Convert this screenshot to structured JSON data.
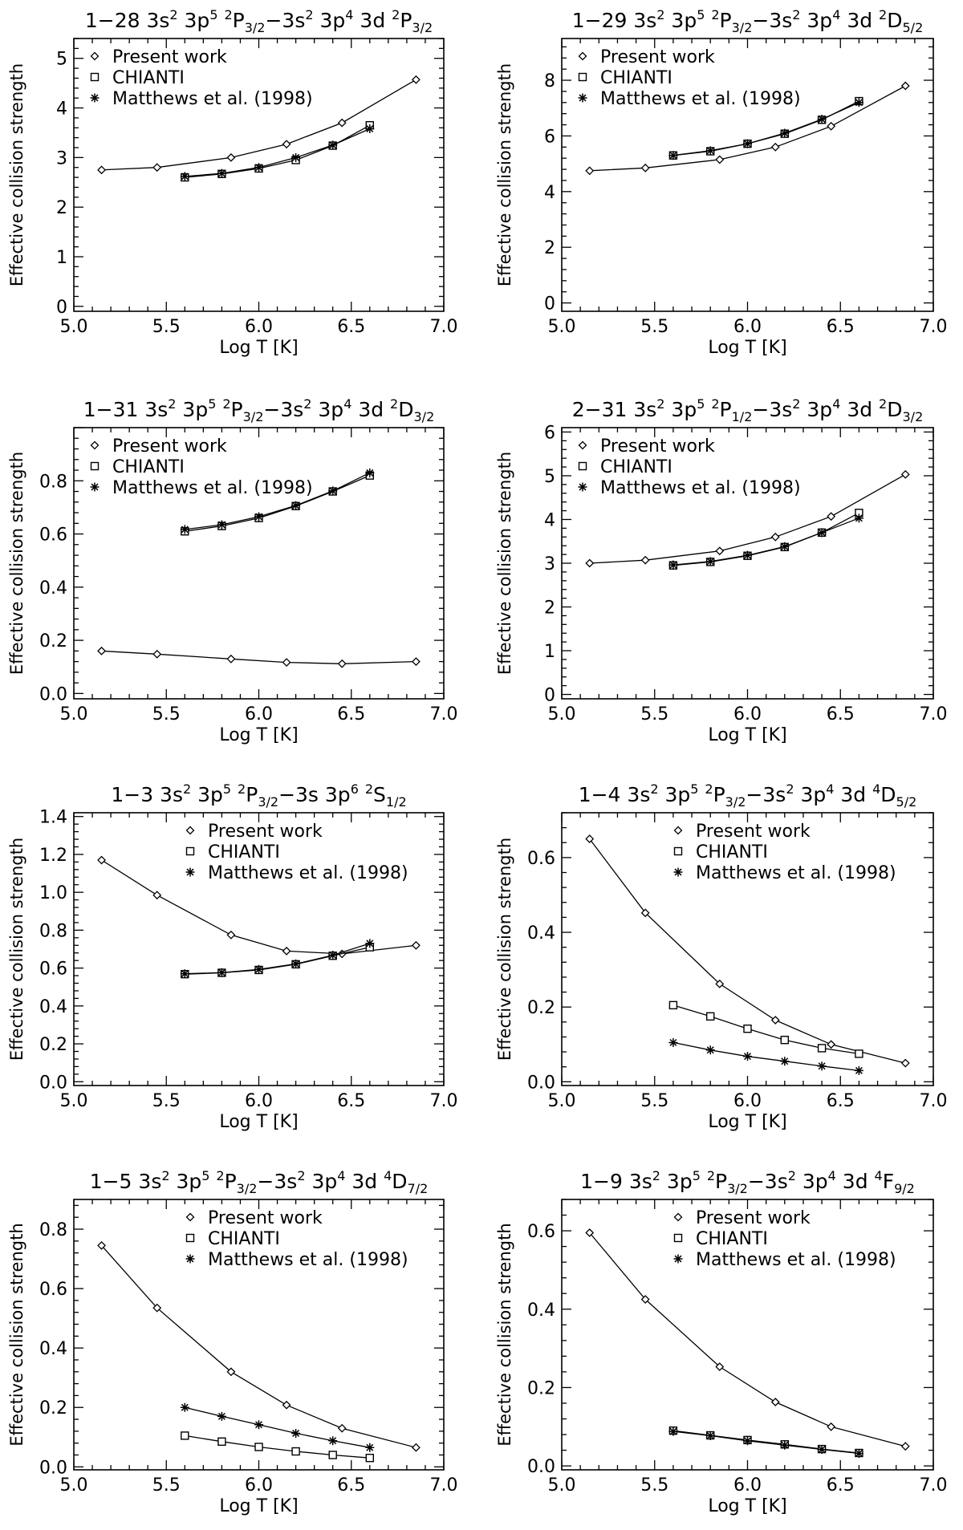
{
  "figure": {
    "common": {
      "xlabel": "Log T [K]",
      "ylabel": "Effective collision strength",
      "xlim": [
        5.0,
        7.0
      ],
      "xticks": [
        "5.0",
        "5.5",
        "6.0",
        "6.5",
        "7.0"
      ],
      "legend": [
        "Present work",
        "CHIANTI",
        "Matthews et al. (1998)"
      ]
    }
  },
  "chart_data": [
    {
      "type": "line",
      "title": "1-28 3s2 3p5 2P3/2-3s2 3p4 3d 2P3/2",
      "title_parts": {
        "lead": "1−28 3s",
        "s1": "2",
        "a": " 3p",
        "s2": "5",
        "b": " ",
        "s3": "2",
        "c": "P",
        "sub1": "3/2",
        "d": "−3s",
        "s4": "2",
        "e": " 3p",
        "s5": "4",
        "f": " 3d ",
        "s6": "2",
        "g": "P",
        "sub2": "3/2"
      },
      "xlabel": "Log T [K]",
      "ylabel": "Effective collision strength",
      "xlim": [
        5.0,
        7.0
      ],
      "ylim": [
        -0.1,
        5.4
      ],
      "yticks": [
        0,
        1,
        2,
        3,
        4,
        5
      ],
      "ytick_labels": [
        "0",
        "1",
        "2",
        "3",
        "4",
        "5"
      ],
      "legend_placement": "top-left",
      "series": [
        {
          "name": "Present work",
          "marker": "diamond",
          "x": [
            5.15,
            5.45,
            5.85,
            6.15,
            6.45,
            6.85
          ],
          "y": [
            2.75,
            2.8,
            3.0,
            3.27,
            3.7,
            4.57
          ]
        },
        {
          "name": "CHIANTI",
          "marker": "square",
          "x": [
            5.6,
            5.8,
            6.0,
            6.2,
            6.4,
            6.6
          ],
          "y": [
            2.6,
            2.67,
            2.78,
            2.95,
            3.24,
            3.65
          ]
        },
        {
          "name": "Matthews et al. (1998)",
          "marker": "asterisk",
          "x": [
            5.6,
            5.8,
            6.0,
            6.2,
            6.4,
            6.6
          ],
          "y": [
            2.62,
            2.68,
            2.8,
            3.0,
            3.25,
            3.58
          ]
        }
      ]
    },
    {
      "type": "line",
      "title": "1-29 3s2 3p5 2P3/2-3s2 3p4 3d 2D5/2",
      "title_parts": {
        "lead": "1−29 3s",
        "s1": "2",
        "a": " 3p",
        "s2": "5",
        "b": " ",
        "s3": "2",
        "c": "P",
        "sub1": "3/2",
        "d": "−3s",
        "s4": "2",
        "e": " 3p",
        "s5": "4",
        "f": " 3d ",
        "s6": "2",
        "g": "D",
        "sub2": "5/2"
      },
      "xlabel": "Log T [K]",
      "ylabel": "Effective collision strength",
      "xlim": [
        5.0,
        7.0
      ],
      "ylim": [
        -0.3,
        9.5
      ],
      "yticks": [
        0,
        2,
        4,
        6,
        8
      ],
      "ytick_labels": [
        "0",
        "2",
        "4",
        "6",
        "8"
      ],
      "legend_placement": "top-left",
      "series": [
        {
          "name": "Present work",
          "marker": "diamond",
          "x": [
            5.15,
            5.45,
            5.85,
            6.15,
            6.45,
            6.85
          ],
          "y": [
            4.75,
            4.85,
            5.15,
            5.6,
            6.35,
            7.8
          ]
        },
        {
          "name": "CHIANTI",
          "marker": "square",
          "x": [
            5.6,
            5.8,
            6.0,
            6.2,
            6.4,
            6.6
          ],
          "y": [
            5.3,
            5.45,
            5.72,
            6.08,
            6.58,
            7.25
          ]
        },
        {
          "name": "Matthews et al. (1998)",
          "marker": "asterisk",
          "x": [
            5.6,
            5.8,
            6.0,
            6.2,
            6.4,
            6.6
          ],
          "y": [
            5.3,
            5.47,
            5.72,
            6.1,
            6.6,
            7.2
          ]
        }
      ]
    },
    {
      "type": "line",
      "title": "1-31 3s2 3p5 2P3/2-3s2 3p4 3d 2D3/2",
      "title_parts": {
        "lead": "1−31 3s",
        "s1": "2",
        "a": " 3p",
        "s2": "5",
        "b": " ",
        "s3": "2",
        "c": "P",
        "sub1": "3/2",
        "d": "−3s",
        "s4": "2",
        "e": " 3p",
        "s5": "4",
        "f": " 3d ",
        "s6": "2",
        "g": "D",
        "sub2": "3/2"
      },
      "xlabel": "Log T [K]",
      "ylabel": "Effective collision strength",
      "xlim": [
        5.0,
        7.0
      ],
      "ylim": [
        -0.02,
        1.0
      ],
      "yticks": [
        0.0,
        0.2,
        0.4,
        0.6,
        0.8
      ],
      "ytick_labels": [
        "0.0",
        "0.2",
        "0.4",
        "0.6",
        "0.8"
      ],
      "legend_placement": "top-left",
      "series": [
        {
          "name": "Present work",
          "marker": "diamond",
          "x": [
            5.15,
            5.45,
            5.85,
            6.15,
            6.45,
            6.85
          ],
          "y": [
            0.16,
            0.148,
            0.13,
            0.117,
            0.112,
            0.12
          ]
        },
        {
          "name": "CHIANTI",
          "marker": "square",
          "x": [
            5.6,
            5.8,
            6.0,
            6.2,
            6.4,
            6.6
          ],
          "y": [
            0.61,
            0.63,
            0.66,
            0.705,
            0.76,
            0.82
          ]
        },
        {
          "name": "Matthews et al. (1998)",
          "marker": "asterisk",
          "x": [
            5.6,
            5.8,
            6.0,
            6.2,
            6.4,
            6.6
          ],
          "y": [
            0.617,
            0.635,
            0.665,
            0.707,
            0.762,
            0.83
          ]
        }
      ]
    },
    {
      "type": "line",
      "title": "2-31 3s2 3p5 2P1/2-3s2 3p4 3d 2D3/2",
      "title_parts": {
        "lead": "2−31 3s",
        "s1": "2",
        "a": " 3p",
        "s2": "5",
        "b": " ",
        "s3": "2",
        "c": "P",
        "sub1": "1/2",
        "d": "−3s",
        "s4": "2",
        "e": " 3p",
        "s5": "4",
        "f": " 3d ",
        "s6": "2",
        "g": "D",
        "sub2": "3/2"
      },
      "xlabel": "Log T [K]",
      "ylabel": "Effective collision strength",
      "xlim": [
        5.0,
        7.0
      ],
      "ylim": [
        -0.1,
        6.1
      ],
      "yticks": [
        0,
        1,
        2,
        3,
        4,
        5,
        6
      ],
      "ytick_labels": [
        "0",
        "1",
        "2",
        "3",
        "4",
        "5",
        "6"
      ],
      "legend_placement": "top-left",
      "series": [
        {
          "name": "Present work",
          "marker": "diamond",
          "x": [
            5.15,
            5.45,
            5.85,
            6.15,
            6.45,
            6.85
          ],
          "y": [
            3.0,
            3.07,
            3.28,
            3.6,
            4.07,
            5.03
          ]
        },
        {
          "name": "CHIANTI",
          "marker": "square",
          "x": [
            5.6,
            5.8,
            6.0,
            6.2,
            6.4,
            6.6
          ],
          "y": [
            2.95,
            3.03,
            3.17,
            3.37,
            3.7,
            4.15
          ]
        },
        {
          "name": "Matthews et al. (1998)",
          "marker": "asterisk",
          "x": [
            5.6,
            5.8,
            6.0,
            6.2,
            6.4,
            6.6
          ],
          "y": [
            2.96,
            3.04,
            3.18,
            3.38,
            3.7,
            4.03
          ]
        }
      ]
    },
    {
      "type": "line",
      "title": "1-3 3s2 3p5 2P3/2-3s 3p6 2S1/2",
      "title_parts": {
        "lead": "1−3 3s",
        "s1": "2",
        "a": " 3p",
        "s2": "5",
        "b": " ",
        "s3": "2",
        "c": "P",
        "sub1": "3/2",
        "d": "−3s",
        "s4": "",
        "e": " 3p",
        "s5": "6",
        "f": " ",
        "s6": "2",
        "g": "S",
        "sub2": "1/2"
      },
      "xlabel": "Log T [K]",
      "ylabel": "Effective collision strength",
      "xlim": [
        5.0,
        7.0
      ],
      "ylim": [
        -0.02,
        1.42
      ],
      "yticks": [
        0.0,
        0.2,
        0.4,
        0.6,
        0.8,
        1.0,
        1.2,
        1.4
      ],
      "ytick_labels": [
        "0.0",
        "0.2",
        "0.4",
        "0.6",
        "0.8",
        "1.0",
        "1.2",
        "1.4"
      ],
      "legend_placement": "top-right",
      "series": [
        {
          "name": "Present work",
          "marker": "diamond",
          "x": [
            5.15,
            5.45,
            5.85,
            6.15,
            6.45,
            6.85
          ],
          "y": [
            1.17,
            0.985,
            0.775,
            0.69,
            0.675,
            0.72
          ]
        },
        {
          "name": "CHIANTI",
          "marker": "square",
          "x": [
            5.6,
            5.8,
            6.0,
            6.2,
            6.4,
            6.6
          ],
          "y": [
            0.568,
            0.575,
            0.59,
            0.62,
            0.665,
            0.71
          ]
        },
        {
          "name": "Matthews et al. (1998)",
          "marker": "asterisk",
          "x": [
            5.6,
            5.8,
            6.0,
            6.2,
            6.4,
            6.6
          ],
          "y": [
            0.57,
            0.576,
            0.593,
            0.622,
            0.668,
            0.73
          ]
        }
      ]
    },
    {
      "type": "line",
      "title": "1-4 3s2 3p5 2P3/2-3s2 3p4 3d 4D5/2",
      "title_parts": {
        "lead": "1−4 3s",
        "s1": "2",
        "a": " 3p",
        "s2": "5",
        "b": " ",
        "s3": "2",
        "c": "P",
        "sub1": "3/2",
        "d": "−3s",
        "s4": "2",
        "e": " 3p",
        "s5": "4",
        "f": " 3d ",
        "s6": "4",
        "g": "D",
        "sub2": "5/2"
      },
      "xlabel": "Log T [K]",
      "ylabel": "Effective collision strength",
      "xlim": [
        5.0,
        7.0
      ],
      "ylim": [
        -0.01,
        0.72
      ],
      "yticks": [
        0.0,
        0.2,
        0.4,
        0.6
      ],
      "ytick_labels": [
        "0.0",
        "0.2",
        "0.4",
        "0.6"
      ],
      "legend_placement": "top-right",
      "series": [
        {
          "name": "Present work",
          "marker": "diamond",
          "x": [
            5.15,
            5.45,
            5.85,
            6.15,
            6.45,
            6.85
          ],
          "y": [
            0.65,
            0.452,
            0.262,
            0.165,
            0.1,
            0.05
          ]
        },
        {
          "name": "CHIANTI",
          "marker": "square",
          "x": [
            5.6,
            5.8,
            6.0,
            6.2,
            6.4,
            6.6
          ],
          "y": [
            0.205,
            0.175,
            0.142,
            0.112,
            0.09,
            0.075
          ]
        },
        {
          "name": "Matthews et al. (1998)",
          "marker": "asterisk",
          "x": [
            5.6,
            5.8,
            6.0,
            6.2,
            6.4,
            6.6
          ],
          "y": [
            0.105,
            0.085,
            0.068,
            0.055,
            0.042,
            0.03
          ]
        }
      ]
    },
    {
      "type": "line",
      "title": "1-5 3s2 3p5 2P3/2-3s2 3p4 3d 4D7/2",
      "title_parts": {
        "lead": "1−5 3s",
        "s1": "2",
        "a": " 3p",
        "s2": "5",
        "b": " ",
        "s3": "2",
        "c": "P",
        "sub1": "3/2",
        "d": "−3s",
        "s4": "2",
        "e": " 3p",
        "s5": "4",
        "f": " 3d ",
        "s6": "4",
        "g": "D",
        "sub2": "7/2"
      },
      "xlabel": "Log T [K]",
      "ylabel": "Effective collision strength",
      "xlim": [
        5.0,
        7.0
      ],
      "ylim": [
        -0.01,
        0.9
      ],
      "yticks": [
        0.0,
        0.2,
        0.4,
        0.6,
        0.8
      ],
      "ytick_labels": [
        "0.0",
        "0.2",
        "0.4",
        "0.6",
        "0.8"
      ],
      "legend_placement": "top-right",
      "series": [
        {
          "name": "Present work",
          "marker": "diamond",
          "x": [
            5.15,
            5.45,
            5.85,
            6.15,
            6.45,
            6.85
          ],
          "y": [
            0.745,
            0.535,
            0.32,
            0.208,
            0.13,
            0.065
          ]
        },
        {
          "name": "CHIANTI",
          "marker": "square",
          "x": [
            5.6,
            5.8,
            6.0,
            6.2,
            6.4,
            6.6
          ],
          "y": [
            0.105,
            0.085,
            0.067,
            0.052,
            0.04,
            0.03
          ]
        },
        {
          "name": "Matthews et al. (1998)",
          "marker": "asterisk",
          "x": [
            5.6,
            5.8,
            6.0,
            6.2,
            6.4,
            6.6
          ],
          "y": [
            0.2,
            0.17,
            0.142,
            0.113,
            0.088,
            0.065
          ]
        }
      ]
    },
    {
      "type": "line",
      "title": "1-9 3s2 3p5 2P3/2-3s2 3p4 3d 4F9/2",
      "title_parts": {
        "lead": "1−9 3s",
        "s1": "2",
        "a": " 3p",
        "s2": "5",
        "b": " ",
        "s3": "2",
        "c": "P",
        "sub1": "3/2",
        "d": "−3s",
        "s4": "2",
        "e": " 3p",
        "s5": "4",
        "f": " 3d ",
        "s6": "4",
        "g": "F",
        "sub2": "9/2"
      },
      "xlabel": "Log T [K]",
      "ylabel": "Effective collision strength",
      "xlim": [
        5.0,
        7.0
      ],
      "ylim": [
        -0.01,
        0.68
      ],
      "yticks": [
        0.0,
        0.2,
        0.4,
        0.6
      ],
      "ytick_labels": [
        "0.0",
        "0.2",
        "0.4",
        "0.6"
      ],
      "legend_placement": "top-right",
      "series": [
        {
          "name": "Present work",
          "marker": "diamond",
          "x": [
            5.15,
            5.45,
            5.85,
            6.15,
            6.45,
            6.85
          ],
          "y": [
            0.595,
            0.425,
            0.253,
            0.163,
            0.1,
            0.05
          ]
        },
        {
          "name": "CHIANTI",
          "marker": "square",
          "x": [
            5.6,
            5.8,
            6.0,
            6.2,
            6.4,
            6.6
          ],
          "y": [
            0.09,
            0.078,
            0.066,
            0.055,
            0.043,
            0.033
          ]
        },
        {
          "name": "Matthews et al. (1998)",
          "marker": "asterisk",
          "x": [
            5.6,
            5.8,
            6.0,
            6.2,
            6.4,
            6.6
          ],
          "y": [
            0.088,
            0.077,
            0.064,
            0.053,
            0.042,
            0.032
          ]
        }
      ]
    }
  ]
}
